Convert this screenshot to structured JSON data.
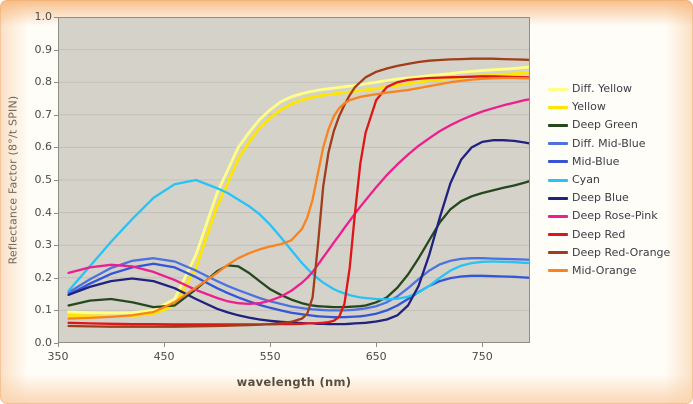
{
  "figure": {
    "background_hex": "#fffdf8",
    "edge_tint_hex": "#f8d3ab",
    "plot_bg_hex": "#d5d2ca",
    "gridline_hex": "#c3c0b8",
    "plot_border_hex": "#908d86",
    "tick_hex": "#8f8c85",
    "tick_label_hex": "#4b4b4b"
  },
  "chart_data": {
    "type": "line",
    "title": "",
    "xlabel": "wavelength (nm)",
    "ylabel": "Reflectance Factor (8°/t SPIN)",
    "xlim": [
      350,
      795
    ],
    "ylim": [
      0.0,
      1.0
    ],
    "x_ticks": [
      350,
      450,
      550,
      650,
      750
    ],
    "y_ticks": [
      "0.0",
      "0.1",
      "0.2",
      "0.3",
      "0.4",
      "0.5",
      "0.6",
      "0.7",
      "0.8",
      "0.9",
      "1.0"
    ],
    "grid": "horizontal-only",
    "legend_position": "right-outside",
    "x": [
      360,
      380,
      400,
      420,
      440,
      460,
      480,
      500,
      510,
      520,
      530,
      540,
      550,
      560,
      570,
      580,
      585,
      590,
      595,
      600,
      605,
      610,
      615,
      620,
      625,
      630,
      635,
      640,
      650,
      660,
      670,
      680,
      690,
      700,
      710,
      720,
      730,
      740,
      750,
      760,
      770,
      780,
      790,
      795
    ],
    "series": [
      {
        "name": "Diff. Yellow",
        "color": "#ffff85",
        "width": 2.8,
        "values": [
          0.095,
          0.093,
          0.092,
          0.093,
          0.1,
          0.135,
          0.27,
          0.46,
          0.53,
          0.6,
          0.645,
          0.685,
          0.715,
          0.74,
          0.755,
          0.765,
          0.769,
          0.772,
          0.775,
          0.778,
          0.78,
          0.782,
          0.784,
          0.786,
          0.788,
          0.79,
          0.792,
          0.795,
          0.8,
          0.805,
          0.81,
          0.813,
          0.816,
          0.82,
          0.823,
          0.826,
          0.83,
          0.833,
          0.836,
          0.838,
          0.84,
          0.842,
          0.845,
          0.846
        ]
      },
      {
        "name": "Yellow",
        "color": "#ffe600",
        "width": 2.8,
        "values": [
          0.085,
          0.083,
          0.082,
          0.083,
          0.09,
          0.115,
          0.23,
          0.42,
          0.49,
          0.565,
          0.615,
          0.66,
          0.69,
          0.715,
          0.733,
          0.745,
          0.75,
          0.754,
          0.757,
          0.76,
          0.762,
          0.764,
          0.766,
          0.768,
          0.77,
          0.772,
          0.774,
          0.776,
          0.78,
          0.785,
          0.79,
          0.795,
          0.8,
          0.805,
          0.808,
          0.812,
          0.815,
          0.818,
          0.82,
          0.822,
          0.824,
          0.826,
          0.828,
          0.83
        ]
      },
      {
        "name": "Deep Green",
        "color": "#25481f",
        "width": 2.3,
        "values": [
          0.115,
          0.13,
          0.135,
          0.125,
          0.11,
          0.115,
          0.165,
          0.22,
          0.238,
          0.235,
          0.215,
          0.19,
          0.165,
          0.148,
          0.133,
          0.122,
          0.118,
          0.115,
          0.113,
          0.112,
          0.111,
          0.11,
          0.11,
          0.11,
          0.111,
          0.112,
          0.113,
          0.115,
          0.125,
          0.14,
          0.17,
          0.21,
          0.26,
          0.315,
          0.37,
          0.41,
          0.435,
          0.45,
          0.46,
          0.468,
          0.476,
          0.483,
          0.492,
          0.497
        ]
      },
      {
        "name": "Diff. Mid-Blue",
        "color": "#4e71e0",
        "width": 2.3,
        "values": [
          0.155,
          0.195,
          0.23,
          0.252,
          0.26,
          0.25,
          0.222,
          0.19,
          0.175,
          0.162,
          0.15,
          0.138,
          0.128,
          0.12,
          0.112,
          0.107,
          0.105,
          0.103,
          0.102,
          0.101,
          0.1,
          0.1,
          0.1,
          0.1,
          0.101,
          0.102,
          0.104,
          0.106,
          0.113,
          0.125,
          0.143,
          0.168,
          0.196,
          0.222,
          0.241,
          0.252,
          0.258,
          0.26,
          0.26,
          0.259,
          0.258,
          0.257,
          0.256,
          0.255
        ]
      },
      {
        "name": "Mid-Blue",
        "color": "#3456d6",
        "width": 2.3,
        "values": [
          0.148,
          0.182,
          0.212,
          0.232,
          0.243,
          0.232,
          0.202,
          0.168,
          0.153,
          0.14,
          0.128,
          0.117,
          0.108,
          0.1,
          0.093,
          0.088,
          0.086,
          0.084,
          0.082,
          0.081,
          0.08,
          0.079,
          0.079,
          0.079,
          0.08,
          0.081,
          0.082,
          0.084,
          0.09,
          0.1,
          0.115,
          0.135,
          0.156,
          0.175,
          0.19,
          0.199,
          0.204,
          0.206,
          0.206,
          0.205,
          0.204,
          0.203,
          0.201,
          0.2
        ]
      },
      {
        "name": "Cyan",
        "color": "#27c3f4",
        "width": 2.3,
        "values": [
          0.16,
          0.235,
          0.31,
          0.38,
          0.445,
          0.487,
          0.5,
          0.475,
          0.46,
          0.44,
          0.42,
          0.395,
          0.363,
          0.325,
          0.285,
          0.245,
          0.228,
          0.212,
          0.198,
          0.185,
          0.175,
          0.165,
          0.158,
          0.152,
          0.147,
          0.143,
          0.14,
          0.138,
          0.135,
          0.134,
          0.136,
          0.142,
          0.155,
          0.175,
          0.2,
          0.222,
          0.237,
          0.245,
          0.249,
          0.25,
          0.249,
          0.248,
          0.246,
          0.245
        ]
      },
      {
        "name": "Deep Blue",
        "color": "#21217f",
        "width": 2.3,
        "values": [
          0.148,
          0.172,
          0.19,
          0.198,
          0.19,
          0.168,
          0.135,
          0.105,
          0.094,
          0.085,
          0.078,
          0.072,
          0.068,
          0.065,
          0.063,
          0.061,
          0.06,
          0.06,
          0.059,
          0.059,
          0.058,
          0.058,
          0.058,
          0.058,
          0.059,
          0.06,
          0.061,
          0.062,
          0.066,
          0.072,
          0.085,
          0.115,
          0.175,
          0.27,
          0.385,
          0.49,
          0.562,
          0.6,
          0.617,
          0.622,
          0.622,
          0.62,
          0.615,
          0.612
        ]
      },
      {
        "name": "Deep Rose-Pink",
        "color": "#ee1e8e",
        "width": 2.3,
        "values": [
          0.215,
          0.232,
          0.24,
          0.235,
          0.218,
          0.193,
          0.163,
          0.138,
          0.128,
          0.122,
          0.12,
          0.122,
          0.13,
          0.142,
          0.16,
          0.185,
          0.2,
          0.218,
          0.24,
          0.263,
          0.285,
          0.308,
          0.33,
          0.353,
          0.375,
          0.397,
          0.418,
          0.438,
          0.478,
          0.515,
          0.548,
          0.578,
          0.605,
          0.628,
          0.65,
          0.668,
          0.684,
          0.698,
          0.71,
          0.72,
          0.729,
          0.737,
          0.745,
          0.748
        ]
      },
      {
        "name": "Deep Red",
        "color": "#df1616",
        "width": 2.3,
        "values": [
          0.062,
          0.06,
          0.059,
          0.058,
          0.058,
          0.057,
          0.057,
          0.057,
          0.057,
          0.057,
          0.057,
          0.057,
          0.057,
          0.058,
          0.058,
          0.059,
          0.06,
          0.06,
          0.061,
          0.062,
          0.064,
          0.068,
          0.08,
          0.12,
          0.23,
          0.4,
          0.55,
          0.645,
          0.745,
          0.785,
          0.8,
          0.807,
          0.81,
          0.813,
          0.814,
          0.815,
          0.816,
          0.817,
          0.818,
          0.818,
          0.817,
          0.816,
          0.815,
          0.815
        ]
      },
      {
        "name": "Deep Red-Orange",
        "color": "#a13d1a",
        "width": 2.3,
        "values": [
          0.052,
          0.051,
          0.05,
          0.05,
          0.05,
          0.05,
          0.051,
          0.052,
          0.053,
          0.054,
          0.055,
          0.056,
          0.058,
          0.06,
          0.065,
          0.075,
          0.09,
          0.14,
          0.3,
          0.48,
          0.585,
          0.65,
          0.695,
          0.73,
          0.76,
          0.785,
          0.8,
          0.815,
          0.832,
          0.842,
          0.85,
          0.856,
          0.862,
          0.866,
          0.868,
          0.87,
          0.871,
          0.872,
          0.872,
          0.872,
          0.871,
          0.87,
          0.869,
          0.868
        ]
      },
      {
        "name": "Mid-Orange",
        "color": "#f8831f",
        "width": 2.3,
        "values": [
          0.075,
          0.077,
          0.08,
          0.085,
          0.095,
          0.125,
          0.17,
          0.215,
          0.24,
          0.26,
          0.275,
          0.287,
          0.296,
          0.303,
          0.315,
          0.35,
          0.385,
          0.44,
          0.52,
          0.6,
          0.655,
          0.695,
          0.72,
          0.735,
          0.745,
          0.75,
          0.755,
          0.758,
          0.763,
          0.768,
          0.772,
          0.776,
          0.782,
          0.788,
          0.794,
          0.8,
          0.804,
          0.808,
          0.81,
          0.812,
          0.813,
          0.813,
          0.812,
          0.812
        ]
      }
    ]
  }
}
